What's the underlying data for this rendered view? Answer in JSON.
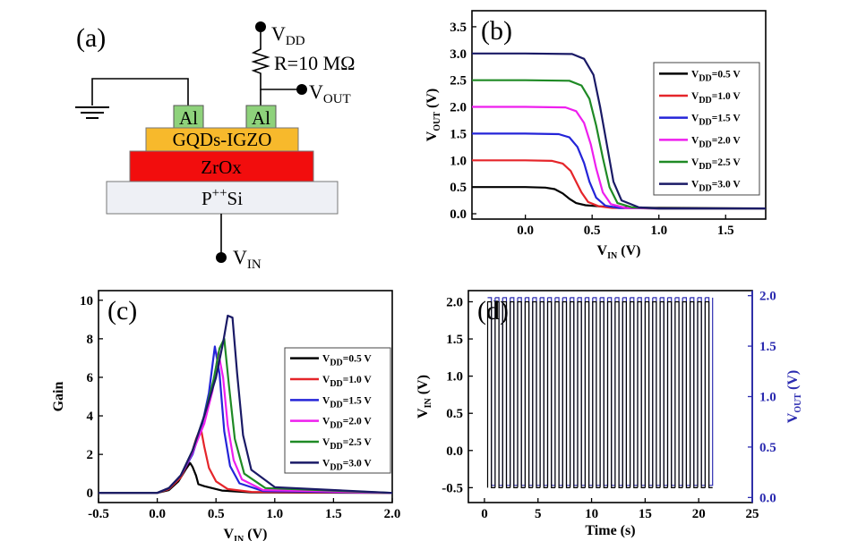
{
  "colors": {
    "black": "#000000",
    "red": "#e5252a",
    "blue": "#2424d8",
    "magenta": "#ee1fee",
    "green": "#1f8a25",
    "navy": "#1a1a66",
    "right_axis": "#2b2bb0",
    "al": "#8ed27b",
    "gqds": "#f7b92c",
    "zrox": "#f20d0d",
    "si": "#eef0f5"
  },
  "schematic": {
    "panel_label": "(a)",
    "vdd_main": "V",
    "vdd_sub": "DD",
    "resistor_label": "R=10 MΩ",
    "vout_main": "V",
    "vout_sub": "OUT",
    "vin_main": "V",
    "vin_sub": "IN",
    "electrode_left": "Al",
    "electrode_right": "Al",
    "layer_channel": "GQDs-IGZO",
    "layer_dielectric": "ZrOx",
    "layer_substrate_main": "P",
    "layer_substrate_sup": "++",
    "layer_substrate_end": "Si"
  },
  "chart_data": [
    {
      "id": "b",
      "panel_label": "(b)",
      "type": "line",
      "xlabel_main": "V",
      "xlabel_sub": "IN",
      "xlabel_end": " (V)",
      "ylabel_main": "V",
      "ylabel_sub": "OUT",
      "ylabel_end": " (V)",
      "xlim": [
        -0.4,
        1.8
      ],
      "ylim": [
        -0.1,
        3.8
      ],
      "xticks": [
        0.0,
        0.5,
        1.0,
        1.5
      ],
      "xtick_labels": [
        "0.0",
        "0.5",
        "1.0",
        "1.5"
      ],
      "yticks": [
        0.0,
        0.5,
        1.0,
        1.5,
        2.0,
        2.5,
        3.0,
        3.5
      ],
      "ytick_labels": [
        "0.0",
        "0.5",
        "1.0",
        "1.5",
        "2.0",
        "2.5",
        "3.0",
        "3.5"
      ],
      "legend_position": "right",
      "series": [
        {
          "name_main": "V",
          "name_sub": "DD",
          "name_end": "=0.5 V",
          "color": "black",
          "x": [
            -0.4,
            0.0,
            0.15,
            0.22,
            0.28,
            0.33,
            0.38,
            0.45,
            0.55,
            0.7,
            1.0,
            1.8
          ],
          "y": [
            0.5,
            0.5,
            0.49,
            0.46,
            0.38,
            0.28,
            0.2,
            0.16,
            0.14,
            0.12,
            0.11,
            0.1
          ]
        },
        {
          "name_main": "V",
          "name_sub": "DD",
          "name_end": "=1.0 V",
          "color": "red",
          "x": [
            -0.4,
            0.0,
            0.2,
            0.28,
            0.34,
            0.38,
            0.42,
            0.47,
            0.55,
            0.65,
            1.0,
            1.8
          ],
          "y": [
            1.0,
            1.0,
            0.99,
            0.94,
            0.8,
            0.6,
            0.4,
            0.22,
            0.14,
            0.11,
            0.1,
            0.1
          ]
        },
        {
          "name_main": "V",
          "name_sub": "DD",
          "name_end": "=1.5 V",
          "color": "blue",
          "x": [
            -0.4,
            0.0,
            0.25,
            0.33,
            0.39,
            0.44,
            0.48,
            0.53,
            0.6,
            0.7,
            1.0,
            1.8
          ],
          "y": [
            1.5,
            1.5,
            1.49,
            1.43,
            1.25,
            0.95,
            0.6,
            0.3,
            0.15,
            0.11,
            0.1,
            0.1
          ]
        },
        {
          "name_main": "V",
          "name_sub": "DD",
          "name_end": "=2.0 V",
          "color": "magenta",
          "x": [
            -0.4,
            0.0,
            0.3,
            0.38,
            0.44,
            0.49,
            0.53,
            0.58,
            0.64,
            0.75,
            1.0,
            1.8
          ],
          "y": [
            2.0,
            2.0,
            1.99,
            1.92,
            1.7,
            1.3,
            0.85,
            0.4,
            0.18,
            0.11,
            0.1,
            0.1
          ]
        },
        {
          "name_main": "V",
          "name_sub": "DD",
          "name_end": "=2.5 V",
          "color": "green",
          "x": [
            -0.4,
            0.0,
            0.33,
            0.42,
            0.48,
            0.53,
            0.58,
            0.63,
            0.69,
            0.8,
            1.0,
            1.8
          ],
          "y": [
            2.5,
            2.5,
            2.49,
            2.4,
            2.15,
            1.65,
            1.05,
            0.5,
            0.2,
            0.12,
            0.1,
            0.1
          ]
        },
        {
          "name_main": "V",
          "name_sub": "DD",
          "name_end": "=3.0 V",
          "color": "navy",
          "x": [
            -0.4,
            0.0,
            0.35,
            0.44,
            0.51,
            0.56,
            0.61,
            0.66,
            0.72,
            0.85,
            1.0,
            1.8
          ],
          "y": [
            3.0,
            3.0,
            2.99,
            2.9,
            2.6,
            2.0,
            1.3,
            0.6,
            0.25,
            0.12,
            0.1,
            0.1
          ]
        }
      ]
    },
    {
      "id": "c",
      "panel_label": "(c)",
      "type": "line",
      "xlabel_main": "V",
      "xlabel_sub": "IN",
      "xlabel_end": " (V)",
      "ylabel_main": "Gain",
      "ylabel_sub": "",
      "ylabel_end": "",
      "xlim": [
        -0.5,
        2.0
      ],
      "ylim": [
        -0.5,
        10.5
      ],
      "xticks": [
        -0.5,
        0.0,
        0.5,
        1.0,
        1.5,
        2.0
      ],
      "xtick_labels": [
        "-0.5",
        "0.0",
        "0.5",
        "1.0",
        "1.5",
        "2.0"
      ],
      "yticks": [
        0,
        2,
        4,
        6,
        8,
        10
      ],
      "ytick_labels": [
        "0",
        "2",
        "4",
        "6",
        "8",
        "10"
      ],
      "legend_position": "right",
      "series": [
        {
          "name_main": "V",
          "name_sub": "DD",
          "name_end": "=0.5 V",
          "color": "black",
          "x": [
            -0.5,
            0.0,
            0.1,
            0.18,
            0.24,
            0.28,
            0.3,
            0.33,
            0.35,
            0.4,
            0.55,
            0.8,
            2.0
          ],
          "y": [
            0,
            0,
            0.15,
            0.6,
            1.2,
            1.55,
            1.35,
            0.9,
            0.45,
            0.35,
            0.12,
            0.03,
            0.0
          ]
        },
        {
          "name_main": "V",
          "name_sub": "DD",
          "name_end": "=1.0 V",
          "color": "red",
          "x": [
            -0.5,
            0.0,
            0.1,
            0.2,
            0.28,
            0.33,
            0.37,
            0.4,
            0.44,
            0.5,
            0.6,
            0.8,
            2.0
          ],
          "y": [
            0,
            0,
            0.2,
            0.8,
            1.8,
            2.8,
            3.4,
            2.4,
            1.3,
            0.6,
            0.2,
            0.05,
            0.0
          ]
        },
        {
          "name_main": "V",
          "name_sub": "DD",
          "name_end": "=1.5 V",
          "color": "blue",
          "x": [
            -0.5,
            0.0,
            0.1,
            0.2,
            0.3,
            0.38,
            0.44,
            0.49,
            0.53,
            0.57,
            0.62,
            0.7,
            0.9,
            2.0
          ],
          "y": [
            0,
            0,
            0.25,
            0.9,
            2.0,
            3.5,
            5.2,
            7.6,
            6.2,
            3.2,
            1.4,
            0.5,
            0.1,
            0.0
          ]
        },
        {
          "name_main": "V",
          "name_sub": "DD",
          "name_end": "=2.0 V",
          "color": "magenta",
          "x": [
            -0.5,
            0.0,
            0.1,
            0.2,
            0.3,
            0.4,
            0.47,
            0.52,
            0.56,
            0.6,
            0.65,
            0.72,
            0.9,
            2.0
          ],
          "y": [
            0,
            0,
            0.25,
            0.9,
            2.1,
            3.6,
            5.3,
            7.3,
            6.0,
            3.5,
            1.7,
            0.7,
            0.15,
            0.0
          ]
        },
        {
          "name_main": "V",
          "name_sub": "DD",
          "name_end": "=2.5 V",
          "color": "green",
          "x": [
            -0.5,
            0.0,
            0.1,
            0.2,
            0.3,
            0.4,
            0.48,
            0.53,
            0.57,
            0.61,
            0.66,
            0.74,
            0.92,
            2.0
          ],
          "y": [
            0,
            0,
            0.25,
            0.9,
            2.2,
            4.0,
            5.9,
            7.5,
            8.0,
            5.6,
            2.8,
            1.0,
            0.25,
            0.0
          ]
        },
        {
          "name_main": "V",
          "name_sub": "DD",
          "name_end": "=3.0 V",
          "color": "navy",
          "x": [
            -0.5,
            0.0,
            0.1,
            0.2,
            0.3,
            0.4,
            0.5,
            0.56,
            0.6,
            0.64,
            0.68,
            0.73,
            0.8,
            1.0,
            2.0
          ],
          "y": [
            0,
            0,
            0.25,
            0.9,
            2.2,
            4.0,
            6.0,
            7.8,
            9.2,
            9.1,
            6.2,
            3.0,
            1.2,
            0.3,
            0.0
          ]
        }
      ]
    },
    {
      "id": "d",
      "panel_label": "(d)",
      "type": "line",
      "xlabel_main": "Time (s)",
      "xlabel_sub": "",
      "xlabel_end": "",
      "ylabel_main": "V",
      "ylabel_sub": "IN",
      "ylabel_end": " (V)",
      "y2label_main": "V",
      "y2label_sub": "OUT",
      "y2label_end": " (V)",
      "xlim": [
        -1.5,
        25
      ],
      "ylim": [
        -0.7,
        2.15
      ],
      "y2lim": [
        -0.05,
        2.05
      ],
      "xticks": [
        0,
        5,
        10,
        15,
        20,
        25
      ],
      "xtick_labels": [
        "0",
        "5",
        "10",
        "15",
        "20",
        "25"
      ],
      "yticks": [
        -0.5,
        0.0,
        0.5,
        1.0,
        1.5,
        2.0
      ],
      "ytick_labels": [
        "-0.5",
        "0.0",
        "0.5",
        "1.0",
        "1.5",
        "2.0"
      ],
      "y2ticks": [
        0.0,
        0.5,
        1.0,
        1.5,
        2.0
      ],
      "y2tick_labels": [
        "0.0",
        "0.5",
        "1.0",
        "1.5",
        "2.0"
      ],
      "pulse_train": {
        "start": 0.3,
        "end": 20.6,
        "period": 0.7,
        "vin_high": 2.0,
        "vin_low": -0.5,
        "vout_high": 1.98,
        "vout_low": 0.12
      }
    }
  ]
}
